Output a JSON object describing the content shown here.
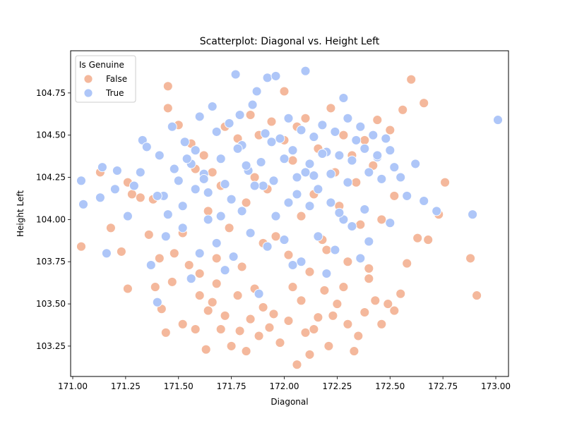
{
  "chart_data": {
    "type": "scatter",
    "title": "Scatterplot: Diagonal vs. Height Left",
    "xlabel": "Diagonal",
    "ylabel": "Height Left",
    "xlim": [
      170.99,
      173.06
    ],
    "ylim": [
      103.07,
      105.0
    ],
    "xticks": [
      "171.00",
      "171.25",
      "171.50",
      "171.75",
      "172.00",
      "172.25",
      "172.50",
      "172.75",
      "173.00"
    ],
    "yticks": [
      "103.25",
      "103.50",
      "103.75",
      "104.00",
      "104.25",
      "104.50",
      "104.75"
    ],
    "grid": false,
    "legend": {
      "title": "Is Genuine",
      "placement": "top-left",
      "entries": [
        "False",
        "True"
      ]
    },
    "colors": {
      "False": "#f4b89c",
      "True": "#aec6f8",
      "edge": "#ffffff"
    },
    "series": [
      {
        "name": "False",
        "x": [
          171.04,
          171.13,
          171.18,
          171.23,
          171.26,
          171.28,
          171.32,
          171.36,
          171.39,
          171.41,
          171.42,
          171.44,
          171.45,
          171.47,
          171.48,
          171.52,
          171.55,
          171.58,
          171.6,
          171.63,
          171.64,
          171.66,
          171.68,
          171.7,
          171.72,
          171.75,
          171.78,
          171.79,
          171.82,
          171.84,
          171.86,
          171.88,
          171.9,
          171.93,
          171.95,
          171.98,
          172.0,
          172.02,
          172.04,
          172.06,
          172.08,
          172.1,
          172.12,
          172.14,
          172.16,
          172.19,
          172.21,
          172.23,
          172.25,
          172.28,
          172.3,
          172.33,
          172.35,
          172.38,
          172.4,
          172.43,
          172.46,
          172.49,
          172.52,
          172.55,
          172.58,
          172.6,
          172.63,
          172.66,
          172.68,
          172.73,
          172.76,
          172.88,
          172.91,
          171.26,
          171.38,
          171.45,
          171.5,
          171.56,
          171.62,
          171.66,
          171.72,
          171.78,
          171.84,
          171.88,
          171.94,
          172.0,
          172.06,
          172.1,
          172.16,
          172.22,
          172.28,
          172.32,
          172.38,
          172.44,
          172.5,
          172.56,
          171.6,
          171.68,
          171.8,
          171.9,
          172.02,
          172.12,
          172.2,
          172.3,
          172.4,
          171.52,
          171.74,
          171.96,
          172.18,
          172.36,
          171.64,
          171.82,
          172.08,
          172.26,
          172.46,
          171.7,
          171.92,
          172.14,
          172.34,
          171.58,
          171.86,
          172.04,
          172.24,
          172.42,
          172.52
        ],
        "y": [
          103.84,
          104.28,
          103.95,
          103.81,
          103.59,
          104.15,
          104.13,
          103.91,
          103.6,
          103.77,
          103.47,
          103.33,
          104.79,
          103.63,
          103.8,
          103.38,
          103.73,
          103.35,
          103.55,
          103.23,
          103.46,
          103.51,
          103.62,
          103.35,
          103.43,
          103.25,
          103.55,
          103.34,
          103.22,
          103.41,
          103.59,
          103.31,
          103.48,
          103.36,
          103.44,
          103.27,
          104.76,
          103.4,
          103.6,
          103.14,
          103.52,
          103.33,
          103.2,
          103.35,
          103.42,
          103.58,
          103.25,
          103.43,
          103.5,
          103.6,
          103.38,
          103.22,
          103.31,
          103.45,
          103.65,
          103.52,
          103.38,
          103.5,
          103.46,
          103.56,
          103.74,
          104.83,
          103.89,
          104.69,
          103.88,
          104.03,
          104.22,
          103.77,
          103.55,
          104.22,
          104.12,
          104.66,
          104.56,
          104.45,
          104.38,
          104.28,
          104.55,
          104.48,
          104.62,
          104.5,
          104.58,
          104.47,
          104.55,
          104.6,
          104.42,
          104.66,
          104.5,
          104.38,
          104.47,
          104.59,
          104.53,
          104.65,
          103.68,
          103.77,
          103.72,
          103.86,
          103.79,
          103.69,
          103.82,
          103.75,
          103.71,
          103.92,
          103.95,
          103.9,
          103.88,
          103.97,
          104.05,
          104.1,
          104.02,
          104.08,
          104.0,
          104.2,
          104.18,
          104.15,
          104.22,
          104.3,
          104.25,
          104.35,
          104.28,
          104.32,
          104.14
        ]
      },
      {
        "name": "True",
        "x": [
          171.04,
          171.05,
          171.13,
          171.14,
          171.16,
          171.2,
          171.21,
          171.26,
          171.29,
          171.32,
          171.33,
          171.35,
          171.37,
          171.4,
          171.41,
          171.43,
          171.45,
          171.47,
          171.5,
          171.52,
          171.53,
          171.56,
          171.58,
          171.6,
          171.62,
          171.64,
          171.66,
          171.68,
          171.7,
          171.72,
          171.74,
          171.77,
          171.79,
          171.8,
          171.83,
          171.85,
          171.87,
          171.89,
          171.91,
          171.92,
          171.95,
          171.96,
          171.98,
          172.0,
          172.02,
          172.04,
          172.06,
          172.08,
          172.1,
          172.12,
          172.14,
          172.16,
          172.18,
          172.2,
          172.22,
          172.24,
          172.26,
          172.28,
          172.3,
          172.32,
          172.34,
          172.36,
          172.38,
          172.4,
          172.42,
          172.44,
          172.46,
          172.48,
          172.5,
          172.52,
          172.55,
          172.58,
          172.62,
          172.66,
          172.72,
          172.89,
          173.01,
          171.44,
          171.52,
          171.6,
          171.68,
          171.76,
          171.84,
          171.92,
          172.0,
          172.08,
          172.16,
          172.24,
          172.32,
          172.4,
          171.56,
          171.72,
          171.88,
          172.04,
          172.2,
          172.36,
          171.64,
          171.8,
          171.96,
          172.12,
          172.28,
          171.4,
          171.58,
          171.75,
          171.9,
          172.06,
          172.22,
          172.38,
          171.48,
          171.82,
          172.14,
          172.44,
          171.62,
          171.86,
          172.1,
          172.3,
          171.54,
          171.78,
          171.94,
          172.18,
          171.7,
          172.02,
          172.26,
          172.5
        ],
        "y": [
          104.23,
          104.09,
          104.13,
          104.31,
          103.8,
          104.18,
          104.29,
          104.02,
          104.2,
          104.28,
          104.47,
          104.43,
          103.73,
          103.51,
          104.38,
          104.14,
          104.03,
          104.55,
          104.23,
          104.08,
          104.46,
          104.33,
          104.41,
          104.61,
          104.27,
          104.16,
          104.67,
          104.52,
          104.36,
          104.21,
          104.57,
          104.86,
          104.62,
          104.44,
          104.29,
          104.68,
          104.76,
          104.34,
          104.51,
          104.84,
          104.23,
          104.85,
          104.48,
          104.36,
          104.6,
          104.41,
          104.25,
          104.53,
          104.88,
          104.33,
          104.49,
          104.18,
          104.56,
          104.4,
          104.27,
          104.52,
          104.38,
          104.72,
          104.6,
          104.35,
          104.47,
          104.55,
          104.42,
          104.28,
          104.5,
          104.37,
          104.24,
          104.48,
          104.41,
          104.31,
          104.25,
          104.14,
          104.33,
          104.11,
          104.05,
          104.03,
          104.59,
          103.9,
          103.95,
          103.8,
          103.86,
          103.78,
          103.92,
          103.84,
          103.88,
          103.75,
          103.9,
          103.82,
          103.96,
          103.87,
          103.65,
          103.7,
          103.56,
          103.73,
          103.68,
          103.77,
          104.0,
          104.05,
          104.02,
          104.08,
          104.0,
          104.14,
          104.18,
          104.12,
          104.2,
          104.15,
          104.1,
          104.06,
          104.3,
          104.32,
          104.26,
          104.38,
          104.24,
          104.2,
          104.28,
          104.22,
          104.36,
          104.42,
          104.46,
          104.39,
          104.02,
          104.1,
          104.04,
          103.98
        ]
      }
    ]
  }
}
